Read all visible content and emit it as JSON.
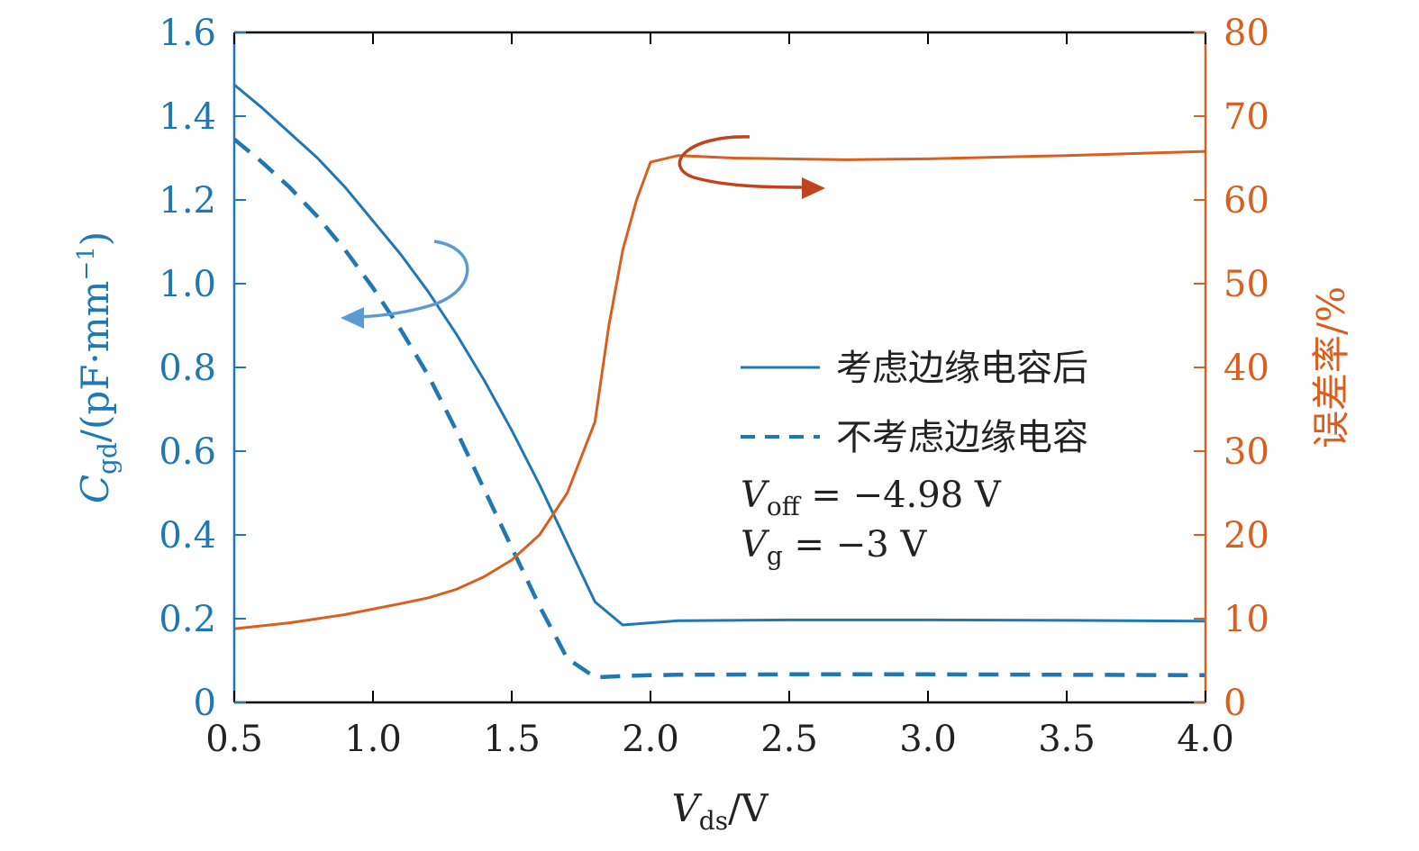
{
  "chart_data": {
    "type": "line",
    "colors": {
      "left": "#1f77b4",
      "right": "#d95f1e",
      "frame": "#000000",
      "text": "#222222",
      "left_arrow": "#5b9bd5",
      "right_arrow": "#c0431c"
    },
    "x": [
      0.5,
      0.6,
      0.7,
      0.8,
      0.9,
      1.0,
      1.1,
      1.2,
      1.3,
      1.4,
      1.5,
      1.6,
      1.7,
      1.8,
      1.9,
      2.0,
      2.1,
      2.5,
      3.0,
      3.5,
      4.0
    ],
    "xlim": [
      0.5,
      4.0
    ],
    "xticks": [
      0.5,
      1.0,
      1.5,
      2.0,
      2.5,
      3.0,
      3.5,
      4.0
    ],
    "xtick_labels": [
      "0.5",
      "1.0",
      "1.5",
      "2.0",
      "2.5",
      "3.0",
      "3.5",
      "4.0"
    ],
    "xlabel": {
      "var": "V",
      "sub": "ds",
      "unit": "/V"
    },
    "y_left": {
      "lim": [
        0,
        1.6
      ],
      "ticks": [
        0,
        0.2,
        0.4,
        0.6,
        0.8,
        1.0,
        1.2,
        1.4,
        1.6
      ],
      "tick_labels": [
        "0",
        "0.2",
        "0.4",
        "0.6",
        "0.8",
        "1.0",
        "1.2",
        "1.4",
        "1.6"
      ],
      "label": {
        "var": "C",
        "sub": "gd",
        "unit_pre": "/(pF·mm",
        "unit_sup": "−1",
        "unit_post": ")"
      }
    },
    "y_right": {
      "lim": [
        0,
        80
      ],
      "ticks": [
        0,
        10,
        20,
        30,
        40,
        50,
        60,
        70,
        80
      ],
      "tick_labels": [
        "0",
        "10",
        "20",
        "30",
        "40",
        "50",
        "60",
        "70",
        "80"
      ],
      "label": "误差率/%"
    },
    "series": [
      {
        "name": "考虑边缘电容后",
        "axis": "left",
        "style": "solid",
        "values": [
          1.475,
          1.42,
          1.36,
          1.3,
          1.23,
          1.15,
          1.07,
          0.98,
          0.88,
          0.77,
          0.65,
          0.52,
          0.38,
          0.24,
          0.185,
          0.19,
          0.195,
          0.197,
          0.197,
          0.196,
          0.194
        ]
      },
      {
        "name": "不考虑边缘电容",
        "axis": "left",
        "style": "dashed",
        "values": [
          1.345,
          1.29,
          1.23,
          1.16,
          1.08,
          0.99,
          0.89,
          0.78,
          0.65,
          0.51,
          0.37,
          0.23,
          0.105,
          0.06,
          0.063,
          0.065,
          0.066,
          0.067,
          0.067,
          0.066,
          0.065
        ]
      },
      {
        "name": "误差率",
        "axis": "right",
        "style": "solid",
        "x": [
          0.5,
          0.7,
          0.9,
          1.1,
          1.2,
          1.3,
          1.4,
          1.5,
          1.6,
          1.7,
          1.8,
          1.85,
          1.9,
          1.95,
          2.0,
          2.1,
          2.3,
          2.7,
          3.0,
          3.5,
          4.0
        ],
        "values": [
          8.8,
          9.5,
          10.5,
          11.8,
          12.5,
          13.5,
          15.0,
          17.0,
          20.0,
          25.0,
          33.5,
          45.0,
          54.0,
          60.0,
          64.5,
          65.3,
          65.0,
          64.8,
          64.9,
          65.3,
          65.8
        ]
      }
    ],
    "legend": [
      {
        "label": "考虑边缘电容后",
        "style": "solid"
      },
      {
        "label": "不考虑边缘电容",
        "style": "dashed"
      }
    ],
    "annotations": [
      {
        "var": "V",
        "sub": "off",
        "text": " = −4.98 V"
      },
      {
        "var": "V",
        "sub": "g",
        "text": " = −3 V"
      }
    ]
  }
}
